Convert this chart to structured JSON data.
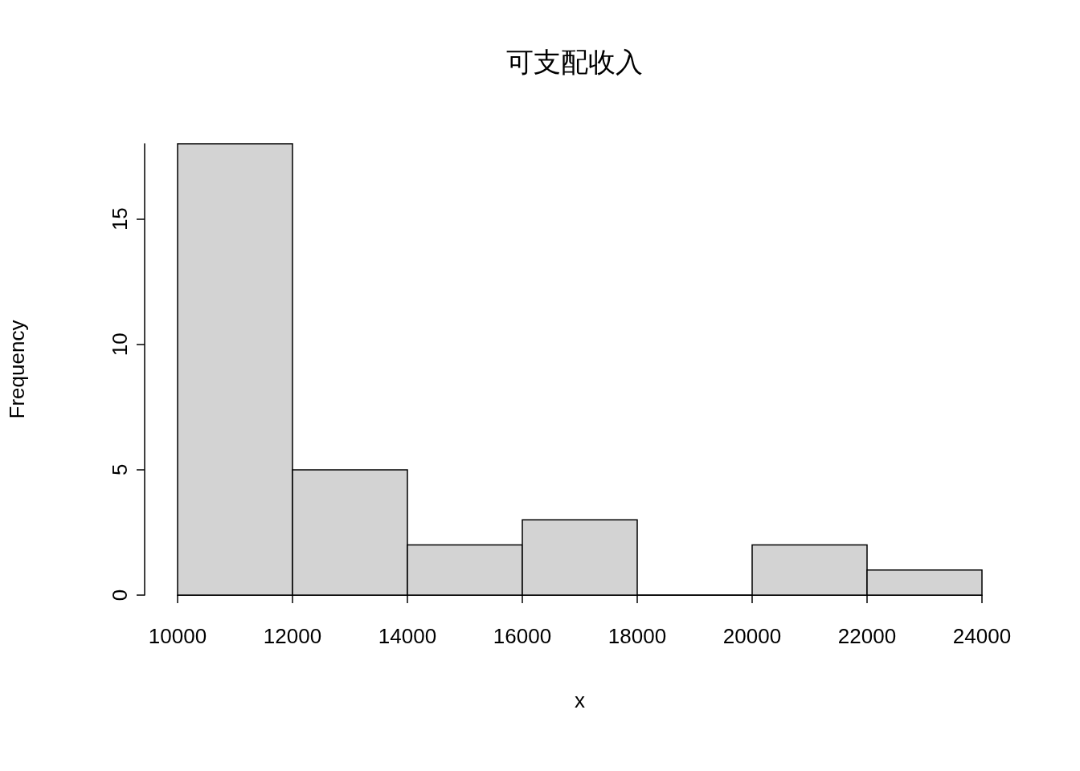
{
  "chart_data": {
    "type": "histogram",
    "title": "可支配收入",
    "xlabel": "x",
    "ylabel": "Frequency",
    "bins": [
      10000,
      12000,
      14000,
      16000,
      18000,
      20000,
      22000,
      24000
    ],
    "values": [
      18,
      5,
      2,
      3,
      0,
      2,
      1
    ],
    "color": "#d3d3d3",
    "xlim": [
      10000,
      24000
    ],
    "xticks": [
      10000,
      12000,
      14000,
      16000,
      18000,
      20000,
      22000,
      24000
    ],
    "ylim": [
      0,
      18
    ],
    "yticks": [
      0,
      5,
      10,
      15
    ]
  }
}
